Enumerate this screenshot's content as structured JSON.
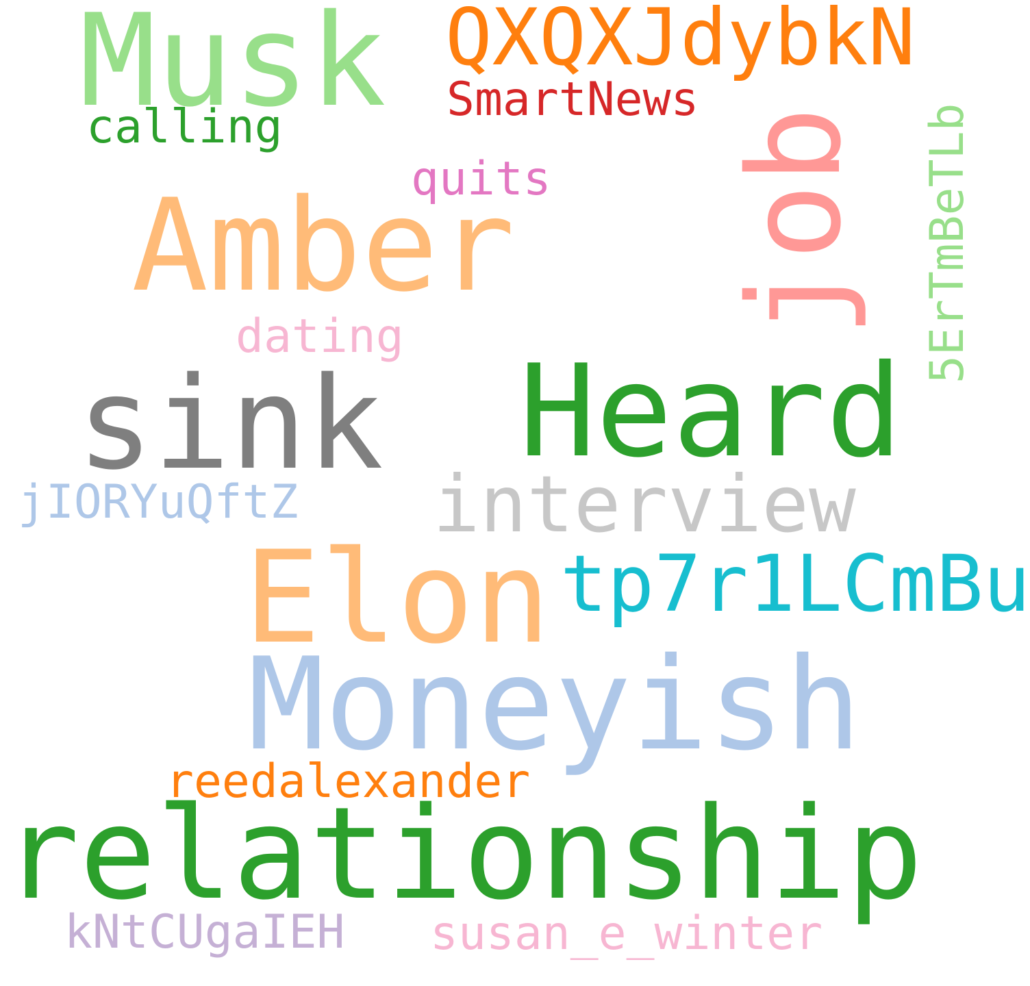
{
  "words": {
    "musk": {
      "text": "Musk",
      "color": "#98df8a"
    },
    "qxqx": {
      "text": "QXQXJdybkN",
      "color": "#ff7f0e"
    },
    "smartnews": {
      "text": "SmartNews",
      "color": "#d62728"
    },
    "calling": {
      "text": "calling",
      "color": "#2ca02c"
    },
    "quits": {
      "text": "quits",
      "color": "#e377c2"
    },
    "amber": {
      "text": "Amber",
      "color": "#ffbb78"
    },
    "job": {
      "text": "job",
      "color": "#ff9896"
    },
    "code_5er": {
      "text": "5ErTmBeTLb",
      "color": "#98df8a"
    },
    "dating": {
      "text": "dating",
      "color": "#f7b6d2"
    },
    "sink": {
      "text": "sink",
      "color": "#7f7f7f"
    },
    "heard": {
      "text": "Heard",
      "color": "#2ca02c"
    },
    "interview": {
      "text": "interview",
      "color": "#c7c7c7"
    },
    "jior": {
      "text": "jIORYuQftZ",
      "color": "#aec7e8"
    },
    "elon": {
      "text": "Elon",
      "color": "#ffbb78"
    },
    "tp7r": {
      "text": "tp7r1LCmBu",
      "color": "#17becf"
    },
    "moneyish": {
      "text": "Moneyish",
      "color": "#aec7e8"
    },
    "reedalexander": {
      "text": "reedalexander",
      "color": "#ff7f0e"
    },
    "relationship": {
      "text": "relationship",
      "color": "#2ca02c"
    },
    "kntc": {
      "text": "kNtCUgaIEH",
      "color": "#c5b0d5"
    },
    "susan": {
      "text": "susan_e_winter",
      "color": "#f7b6d2"
    }
  }
}
